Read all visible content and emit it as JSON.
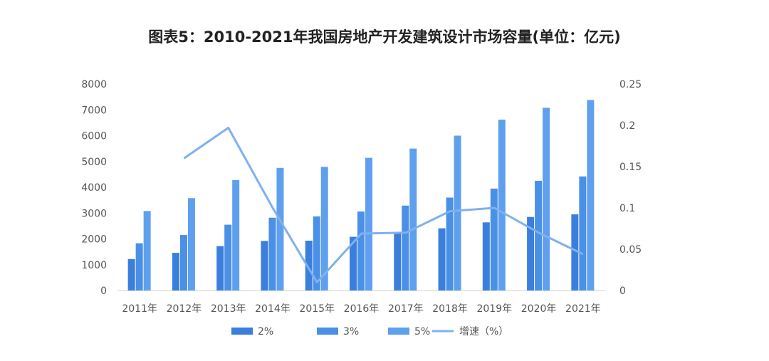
{
  "chart_data": {
    "type": "bar",
    "title": "图表5：2010-2021年我国房地产开发建筑设计市场容量(单位：亿元)",
    "categories": [
      "2011年",
      "2012年",
      "2013年",
      "2014年",
      "2015年",
      "2016年",
      "2017年",
      "2018年",
      "2019年",
      "2020年",
      "2021年"
    ],
    "series": [
      {
        "name": "2%",
        "type": "bar",
        "color": "#3b7fdc",
        "values": [
          1220,
          1460,
          1720,
          1920,
          1930,
          2080,
          2210,
          2410,
          2640,
          2850,
          2950
        ]
      },
      {
        "name": "3%",
        "type": "bar",
        "color": "#4a90e6",
        "values": [
          1830,
          2150,
          2550,
          2820,
          2870,
          3060,
          3290,
          3600,
          3950,
          4250,
          4420
        ]
      },
      {
        "name": "5%",
        "type": "bar",
        "color": "#5fa0ee",
        "values": [
          3080,
          3580,
          4280,
          4750,
          4790,
          5140,
          5500,
          6000,
          6620,
          7080,
          7380
        ]
      },
      {
        "name": "增速（%）",
        "type": "line",
        "axis": "right",
        "color": "#7fb0f0",
        "values": [
          null,
          0.16,
          0.197,
          0.1,
          0.01,
          0.069,
          0.07,
          0.096,
          0.1,
          0.07,
          0.044
        ]
      }
    ],
    "y_left": {
      "min": 0,
      "max": 8000,
      "ticks": [
        "0",
        "1000",
        "2000",
        "3000",
        "4000",
        "5000",
        "6000",
        "7000",
        "8000"
      ]
    },
    "y_right": {
      "min": 0,
      "max": 0.25,
      "ticks": [
        "0",
        "0.05",
        "0.1",
        "0.15",
        "0.2",
        "0.25"
      ]
    },
    "legend_position": "bottom",
    "grid": false
  }
}
